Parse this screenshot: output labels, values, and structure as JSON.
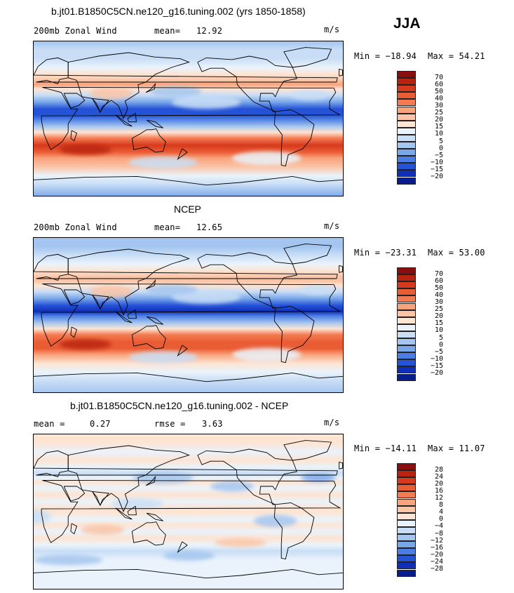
{
  "figure": {
    "season": "JJA",
    "units": "m/s"
  },
  "chart_data": [
    {
      "type": "heatmap",
      "title": "b.jt01.B1850C5CN.ne120_g16.tuning.002 (yrs 1850-1858)",
      "variable": "200mb Zonal Wind",
      "stat_label": "mean=",
      "stat_value": "12.92",
      "units": "m/s",
      "min_text": "Min = −18.94",
      "max_text": "Max =  54.21",
      "levels": [
        "70",
        "60",
        "50",
        "40",
        "30",
        "25",
        "20",
        "15",
        "10",
        "5",
        "0",
        "−5",
        "−10",
        "−15",
        "−20"
      ],
      "colors": [
        "#8b0d0d",
        "#b8230f",
        "#d53a1d",
        "#ea5c34",
        "#f47b51",
        "#f9a37c",
        "#fbc4a6",
        "#fde4d3",
        "#eaf3fb",
        "#c9def6",
        "#a4c5ef",
        "#7aa7ea",
        "#4b7ee4",
        "#2553d8",
        "#0f2fb8",
        "#071c8e"
      ],
      "bands": [
        {
          "lat": 90,
          "level": 10
        },
        {
          "lat": 80,
          "level": 9
        },
        {
          "lat": 70,
          "level": 9
        },
        {
          "lat": 60,
          "level": 8
        },
        {
          "lat": 52,
          "level": 7
        },
        {
          "lat": 45,
          "level": 6
        },
        {
          "lat": 40,
          "level": 5
        },
        {
          "lat": 35,
          "level": 7
        },
        {
          "lat": 28,
          "level": 9
        },
        {
          "lat": 20,
          "level": 11
        },
        {
          "lat": 12,
          "level": 13
        },
        {
          "lat": 5,
          "level": 13
        },
        {
          "lat": 0,
          "level": 12
        },
        {
          "lat": -8,
          "level": 10
        },
        {
          "lat": -15,
          "level": 7
        },
        {
          "lat": -22,
          "level": 4
        },
        {
          "lat": -30,
          "level": 2
        },
        {
          "lat": -38,
          "level": 3
        },
        {
          "lat": -45,
          "level": 5
        },
        {
          "lat": -55,
          "level": 6
        },
        {
          "lat": -65,
          "level": 8
        },
        {
          "lat": -75,
          "level": 9
        },
        {
          "lat": -90,
          "level": 11
        }
      ]
    },
    {
      "type": "heatmap",
      "title": "NCEP",
      "variable": "200mb Zonal Wind",
      "stat_label": "mean=",
      "stat_value": "12.65",
      "units": "m/s",
      "min_text": "Min = −23.31",
      "max_text": "Max =  53.00",
      "levels": [
        "70",
        "60",
        "50",
        "40",
        "30",
        "25",
        "20",
        "15",
        "10",
        "5",
        "0",
        "−5",
        "−10",
        "−15",
        "−20"
      ],
      "colors": [
        "#8b0d0d",
        "#b8230f",
        "#d53a1d",
        "#ea5c34",
        "#f47b51",
        "#f9a37c",
        "#fbc4a6",
        "#fde4d3",
        "#eaf3fb",
        "#c9def6",
        "#a4c5ef",
        "#7aa7ea",
        "#4b7ee4",
        "#2553d8",
        "#0f2fb8",
        "#071c8e"
      ],
      "bands": [
        {
          "lat": 90,
          "level": 10
        },
        {
          "lat": 80,
          "level": 10
        },
        {
          "lat": 70,
          "level": 9
        },
        {
          "lat": 60,
          "level": 8
        },
        {
          "lat": 52,
          "level": 7
        },
        {
          "lat": 45,
          "level": 6
        },
        {
          "lat": 40,
          "level": 6
        },
        {
          "lat": 35,
          "level": 7
        },
        {
          "lat": 28,
          "level": 9
        },
        {
          "lat": 20,
          "level": 11
        },
        {
          "lat": 12,
          "level": 13
        },
        {
          "lat": 5,
          "level": 14
        },
        {
          "lat": 0,
          "level": 12
        },
        {
          "lat": -8,
          "level": 10
        },
        {
          "lat": -15,
          "level": 7
        },
        {
          "lat": -22,
          "level": 4
        },
        {
          "lat": -30,
          "level": 3
        },
        {
          "lat": -38,
          "level": 3
        },
        {
          "lat": -45,
          "level": 5
        },
        {
          "lat": -55,
          "level": 7
        },
        {
          "lat": -65,
          "level": 8
        },
        {
          "lat": -75,
          "level": 9
        },
        {
          "lat": -90,
          "level": 10
        }
      ]
    },
    {
      "type": "heatmap",
      "title": "b.jt01.B1850C5CN.ne120_g16.tuning.002 - NCEP",
      "variable": "",
      "stat_label": "mean =",
      "stat_value": "0.27",
      "stat2_label": "rmse =",
      "stat2_value": "3.63",
      "units": "m/s",
      "min_text": "Min = −14.11",
      "max_text": "Max =  11.07",
      "levels": [
        "28",
        "24",
        "20",
        "16",
        "12",
        "8",
        "4",
        "0",
        "−4",
        "−8",
        "−12",
        "−16",
        "−20",
        "−24",
        "−28"
      ],
      "colors": [
        "#8b0d0d",
        "#b8230f",
        "#d53a1d",
        "#ea5c34",
        "#f47b51",
        "#f9a37c",
        "#fbc4a6",
        "#fde4d3",
        "#eaf3fb",
        "#c9def6",
        "#a4c5ef",
        "#7aa7ea",
        "#4b7ee4",
        "#2553d8",
        "#0f2fb8",
        "#071c8e"
      ],
      "bands": [
        {
          "lat": 90,
          "level": 7
        },
        {
          "lat": 80,
          "level": 7
        },
        {
          "lat": 70,
          "level": 8
        },
        {
          "lat": 60,
          "level": 7
        },
        {
          "lat": 52,
          "level": 8
        },
        {
          "lat": 45,
          "level": 9
        },
        {
          "lat": 40,
          "level": 8
        },
        {
          "lat": 35,
          "level": 7
        },
        {
          "lat": 28,
          "level": 8
        },
        {
          "lat": 20,
          "level": 7
        },
        {
          "lat": 12,
          "level": 8
        },
        {
          "lat": 5,
          "level": 7
        },
        {
          "lat": 0,
          "level": 7
        },
        {
          "lat": -8,
          "level": 8
        },
        {
          "lat": -15,
          "level": 7
        },
        {
          "lat": -22,
          "level": 8
        },
        {
          "lat": -30,
          "level": 7
        },
        {
          "lat": -38,
          "level": 8
        },
        {
          "lat": -45,
          "level": 9
        },
        {
          "lat": -55,
          "level": 8
        },
        {
          "lat": -65,
          "level": 8
        },
        {
          "lat": -75,
          "level": 8
        },
        {
          "lat": -90,
          "level": 8
        }
      ]
    }
  ]
}
